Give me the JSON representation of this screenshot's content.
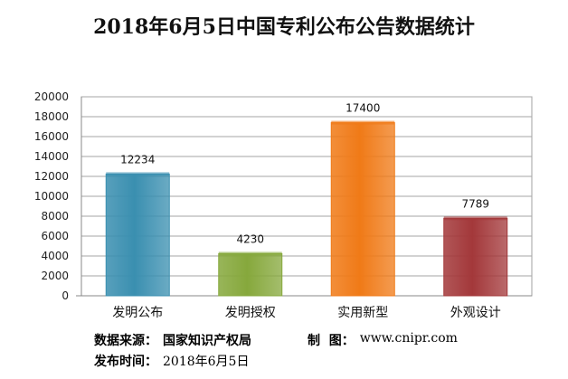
{
  "chart_data": {
    "type": "bar",
    "title": "2018年6月5日中国专利公布公告数据统计",
    "categories": [
      "发明公布",
      "发明授权",
      "实用新型",
      "外观设计"
    ],
    "values": [
      12234,
      4230,
      17400,
      7789
    ],
    "ylim": [
      0,
      20000
    ],
    "yticks": [
      0,
      2000,
      4000,
      6000,
      8000,
      10000,
      12000,
      14000,
      16000,
      18000,
      20000
    ],
    "grid": true,
    "colors": [
      "#3a8fb0",
      "#86a83c",
      "#f07a17",
      "#a3383a"
    ]
  },
  "footer": {
    "source_label": "数据来源：",
    "source_value": "国家知识产权局",
    "maker_label": "制  图：",
    "maker_value": "www.cnipr.com",
    "date_label": "发布时间：",
    "date_value": "2018年6月5日"
  }
}
